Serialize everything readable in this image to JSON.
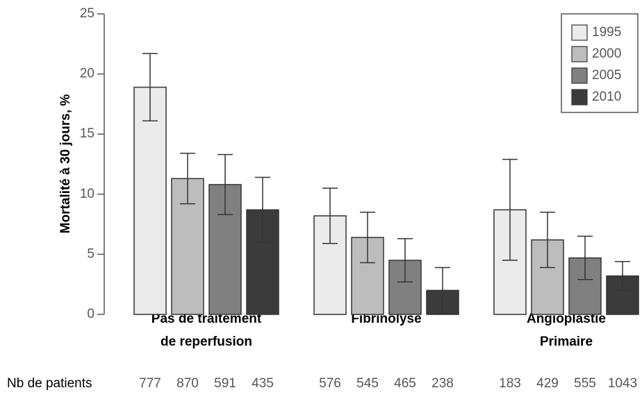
{
  "chart_data": {
    "type": "bar",
    "ylabel": "Mortalité à 30 jours, %",
    "categories": [
      [
        "Pas de traitement",
        "de reperfusion"
      ],
      [
        "Fibrinolyse"
      ],
      [
        "Angioplastie",
        "Primaire"
      ]
    ],
    "series": [
      {
        "name": "1995",
        "color": "#ebebeb",
        "values": [
          18.9,
          8.2,
          8.7
        ],
        "errors": [
          2.8,
          2.3,
          4.2
        ]
      },
      {
        "name": "2000",
        "color": "#bdbdbd",
        "values": [
          11.3,
          6.4,
          6.2
        ],
        "errors": [
          2.1,
          2.1,
          2.3
        ]
      },
      {
        "name": "2005",
        "color": "#808080",
        "values": [
          10.8,
          4.5,
          4.7
        ],
        "errors": [
          2.5,
          1.8,
          1.8
        ]
      },
      {
        "name": "2010",
        "color": "#3b3b3b",
        "values": [
          8.7,
          2.0,
          3.2
        ],
        "errors": [
          2.7,
          1.9,
          1.2
        ]
      }
    ],
    "patients_label": "Nb de patients",
    "patients": [
      [
        777,
        870,
        591,
        435
      ],
      [
        576,
        545,
        465,
        238
      ],
      [
        183,
        429,
        555,
        1043
      ]
    ],
    "ylim": [
      0,
      25
    ],
    "yticks": [
      0,
      5,
      10,
      15,
      20,
      25
    ],
    "legend": "upper right"
  }
}
